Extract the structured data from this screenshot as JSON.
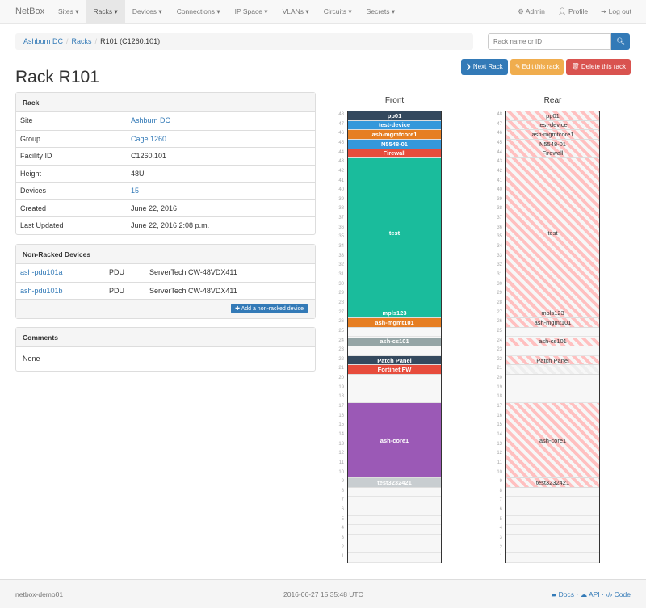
{
  "nav": {
    "brand": "NetBox",
    "menu": [
      "Sites",
      "Racks",
      "Devices",
      "Connections",
      "IP Space",
      "VLANs",
      "Circuits",
      "Secrets"
    ],
    "active": "Racks",
    "right": [
      "Admin",
      "Profile",
      "Log out"
    ]
  },
  "breadcrumb": [
    "Ashburn DC",
    "Racks",
    "R101 (C1260.101)"
  ],
  "search": {
    "placeholder": "Rack name or ID"
  },
  "buttons": {
    "next": "Next Rack",
    "edit": "Edit this rack",
    "delete": "Delete this rack"
  },
  "title": "Rack R101",
  "rack_panel": {
    "title": "Rack",
    "rows": [
      {
        "k": "Site",
        "v": "Ashburn DC",
        "link": true
      },
      {
        "k": "Group",
        "v": "Cage 1260",
        "link": true
      },
      {
        "k": "Facility ID",
        "v": "C1260.101"
      },
      {
        "k": "Height",
        "v": "48U"
      },
      {
        "k": "Devices",
        "v": "15",
        "link": true
      },
      {
        "k": "Created",
        "v": "June 22, 2016"
      },
      {
        "k": "Last Updated",
        "v": "June 22, 2016 2:08 p.m."
      }
    ]
  },
  "nonracked": {
    "title": "Non-Racked Devices",
    "rows": [
      {
        "name": "ash-pdu101a",
        "role": "PDU",
        "type": "ServerTech CW-48VDX411"
      },
      {
        "name": "ash-pdu101b",
        "role": "PDU",
        "type": "ServerTech CW-48VDX411"
      }
    ],
    "add": "Add a non-racked device"
  },
  "comments": {
    "title": "Comments",
    "body": "None"
  },
  "rack": {
    "units": 48,
    "front_label": "Front",
    "rear_label": "Rear",
    "front": [
      {
        "u": 48,
        "h": 1,
        "name": "pp01",
        "color": "#34495e"
      },
      {
        "u": 47,
        "h": 1,
        "name": "test-device",
        "color": "#3498db"
      },
      {
        "u": 46,
        "h": 1,
        "name": "ash-mgmtcore1",
        "color": "#e67e22"
      },
      {
        "u": 45,
        "h": 1,
        "name": "N5548-01",
        "color": "#3498db"
      },
      {
        "u": 44,
        "h": 1,
        "name": "Firewall",
        "color": "#e74c3c"
      },
      {
        "u": 43,
        "h": 16,
        "name": "test",
        "color": "#1abc9c"
      },
      {
        "u": 27,
        "h": 1,
        "name": "mpls123",
        "color": "#1abc9c"
      },
      {
        "u": 26,
        "h": 1,
        "name": "ash-mgmt101",
        "color": "#e67e22"
      },
      {
        "u": 24,
        "h": 1,
        "name": "ash-cs101",
        "color": "#95a5a6"
      },
      {
        "u": 22,
        "h": 1,
        "name": "Patch Panel",
        "color": "#34495e"
      },
      {
        "u": 21,
        "h": 1,
        "name": "Fortinet FW",
        "color": "#e74c3c"
      },
      {
        "u": 17,
        "h": 8,
        "name": "ash-core1",
        "color": "#9b59b6"
      },
      {
        "u": 9,
        "h": 1,
        "name": "test3232421",
        "color": "#c8cdd0"
      }
    ],
    "rear": [
      {
        "u": 48,
        "h": 1,
        "name": "pp01"
      },
      {
        "u": 47,
        "h": 1,
        "name": "test-device"
      },
      {
        "u": 46,
        "h": 1,
        "name": "ash-mgmtcore1"
      },
      {
        "u": 45,
        "h": 1,
        "name": "N5548-01"
      },
      {
        "u": 44,
        "h": 1,
        "name": "Firewall"
      },
      {
        "u": 43,
        "h": 16,
        "name": "test"
      },
      {
        "u": 27,
        "h": 1,
        "name": "mpls123"
      },
      {
        "u": 26,
        "h": 1,
        "name": "ash-mgmt101"
      },
      {
        "u": 24,
        "h": 1,
        "name": "ash-cs101"
      },
      {
        "u": 22,
        "h": 1,
        "name": "Patch Panel"
      },
      {
        "u": 21,
        "h": 1,
        "name": "",
        "faint": true
      },
      {
        "u": 17,
        "h": 8,
        "name": "ash-core1"
      },
      {
        "u": 9,
        "h": 1,
        "name": "test3232421"
      }
    ]
  },
  "footer": {
    "host": "netbox-demo01",
    "time": "2016-06-27 15:35:48 UTC",
    "links": [
      "Docs",
      "API",
      "Code"
    ]
  },
  "colors": {
    "primary": "#337ab7",
    "warning": "#f0ad4e",
    "danger": "#d9534f"
  }
}
